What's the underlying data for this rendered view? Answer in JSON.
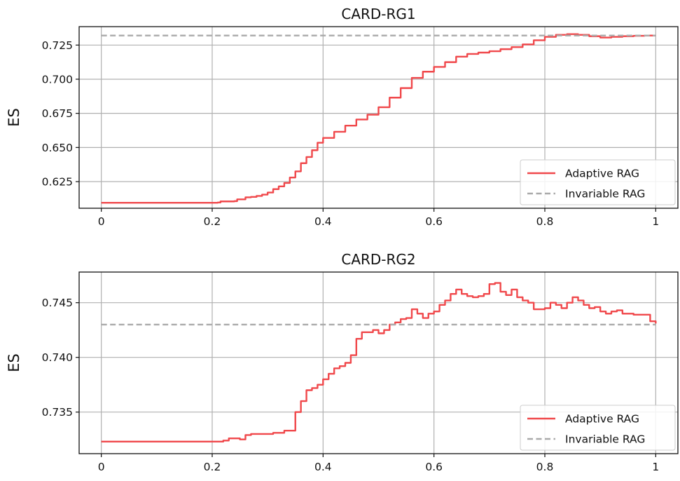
{
  "chart_data": [
    {
      "type": "line",
      "title": "CARD-RG1",
      "xlabel": "",
      "ylabel": "ES",
      "xlim": [
        -0.04,
        1.04
      ],
      "ylim": [
        0.6055,
        0.7385
      ],
      "xticks": [
        0,
        0.2,
        0.4,
        0.6,
        0.8,
        1
      ],
      "xtick_labels": [
        "0",
        "0.2",
        "0.4",
        "0.6",
        "0.8",
        "1"
      ],
      "yticks": [
        0.625,
        0.65,
        0.675,
        0.7,
        0.725
      ],
      "ytick_labels": [
        "0.625",
        "0.650",
        "0.675",
        "0.700",
        "0.725"
      ],
      "grid": true,
      "legend_position": "lower-right",
      "series": [
        {
          "name": "Adaptive RAG",
          "color": "#f0484b",
          "style": "solid",
          "x": [
            0,
            0.1,
            0.2,
            0.21,
            0.215,
            0.24,
            0.245,
            0.26,
            0.27,
            0.28,
            0.29,
            0.3,
            0.31,
            0.32,
            0.33,
            0.34,
            0.35,
            0.36,
            0.37,
            0.38,
            0.39,
            0.4,
            0.42,
            0.44,
            0.46,
            0.48,
            0.5,
            0.52,
            0.54,
            0.56,
            0.58,
            0.6,
            0.62,
            0.64,
            0.66,
            0.68,
            0.7,
            0.72,
            0.74,
            0.76,
            0.78,
            0.8,
            0.82,
            0.84,
            0.85,
            0.86,
            0.88,
            0.9,
            0.92,
            0.94,
            0.96,
            0.98,
            1.0
          ],
          "y": [
            0.6095,
            0.6095,
            0.6095,
            0.6097,
            0.6105,
            0.6107,
            0.612,
            0.6135,
            0.6138,
            0.6145,
            0.6155,
            0.617,
            0.6195,
            0.6215,
            0.624,
            0.628,
            0.6325,
            0.6385,
            0.643,
            0.648,
            0.6535,
            0.657,
            0.6615,
            0.666,
            0.6705,
            0.674,
            0.6795,
            0.6865,
            0.6935,
            0.701,
            0.7055,
            0.709,
            0.7125,
            0.7165,
            0.7185,
            0.7195,
            0.7205,
            0.722,
            0.7235,
            0.7255,
            0.7285,
            0.731,
            0.7325,
            0.733,
            0.733,
            0.7325,
            0.7315,
            0.7305,
            0.731,
            0.7315,
            0.7318,
            0.732,
            0.732
          ]
        },
        {
          "name": "Invariable RAG",
          "color": "#aaaaaa",
          "style": "dashed",
          "x": [
            0,
            1
          ],
          "y": [
            0.732,
            0.732
          ]
        }
      ]
    },
    {
      "type": "line",
      "title": "CARD-RG2",
      "xlabel": "",
      "ylabel": "ES",
      "xlim": [
        -0.04,
        1.04
      ],
      "ylim": [
        0.7312,
        0.7478
      ],
      "xticks": [
        0,
        0.2,
        0.4,
        0.6,
        0.8,
        1
      ],
      "xtick_labels": [
        "0",
        "0.2",
        "0.4",
        "0.6",
        "0.8",
        "1"
      ],
      "yticks": [
        0.735,
        0.74,
        0.745
      ],
      "ytick_labels": [
        "0.735",
        "0.740",
        "0.745"
      ],
      "grid": true,
      "legend_position": "lower-right",
      "series": [
        {
          "name": "Adaptive RAG",
          "color": "#f0484b",
          "style": "solid",
          "x": [
            0,
            0.1,
            0.2,
            0.22,
            0.23,
            0.25,
            0.26,
            0.27,
            0.29,
            0.31,
            0.33,
            0.34,
            0.35,
            0.36,
            0.37,
            0.38,
            0.39,
            0.4,
            0.41,
            0.42,
            0.43,
            0.44,
            0.45,
            0.46,
            0.47,
            0.48,
            0.49,
            0.5,
            0.51,
            0.52,
            0.53,
            0.54,
            0.55,
            0.56,
            0.57,
            0.58,
            0.59,
            0.6,
            0.61,
            0.62,
            0.63,
            0.64,
            0.65,
            0.66,
            0.67,
            0.68,
            0.69,
            0.7,
            0.71,
            0.72,
            0.73,
            0.74,
            0.75,
            0.76,
            0.77,
            0.78,
            0.79,
            0.8,
            0.81,
            0.82,
            0.83,
            0.84,
            0.85,
            0.86,
            0.87,
            0.88,
            0.89,
            0.9,
            0.91,
            0.92,
            0.93,
            0.94,
            0.95,
            0.96,
            0.97,
            0.98,
            0.99,
            1.0
          ],
          "y": [
            0.7323,
            0.7323,
            0.7323,
            0.7324,
            0.7326,
            0.7325,
            0.7329,
            0.733,
            0.733,
            0.7331,
            0.7333,
            0.7333,
            0.735,
            0.736,
            0.737,
            0.7372,
            0.7375,
            0.738,
            0.7385,
            0.739,
            0.7392,
            0.7395,
            0.7402,
            0.7417,
            0.7423,
            0.7423,
            0.7425,
            0.7422,
            0.7425,
            0.743,
            0.7432,
            0.7435,
            0.7436,
            0.7444,
            0.744,
            0.7436,
            0.744,
            0.7442,
            0.7448,
            0.7452,
            0.7458,
            0.7462,
            0.7458,
            0.7456,
            0.7455,
            0.7456,
            0.7458,
            0.7467,
            0.7468,
            0.746,
            0.7457,
            0.7462,
            0.7455,
            0.7452,
            0.745,
            0.7444,
            0.7444,
            0.7445,
            0.745,
            0.7448,
            0.7445,
            0.745,
            0.7455,
            0.7452,
            0.7448,
            0.7445,
            0.7446,
            0.7442,
            0.744,
            0.7442,
            0.7443,
            0.744,
            0.744,
            0.7439,
            0.7439,
            0.7439,
            0.7433,
            0.7431
          ]
        },
        {
          "name": "Invariable RAG",
          "color": "#aaaaaa",
          "style": "dashed",
          "x": [
            0,
            1
          ],
          "y": [
            0.743,
            0.743
          ]
        }
      ]
    }
  ]
}
